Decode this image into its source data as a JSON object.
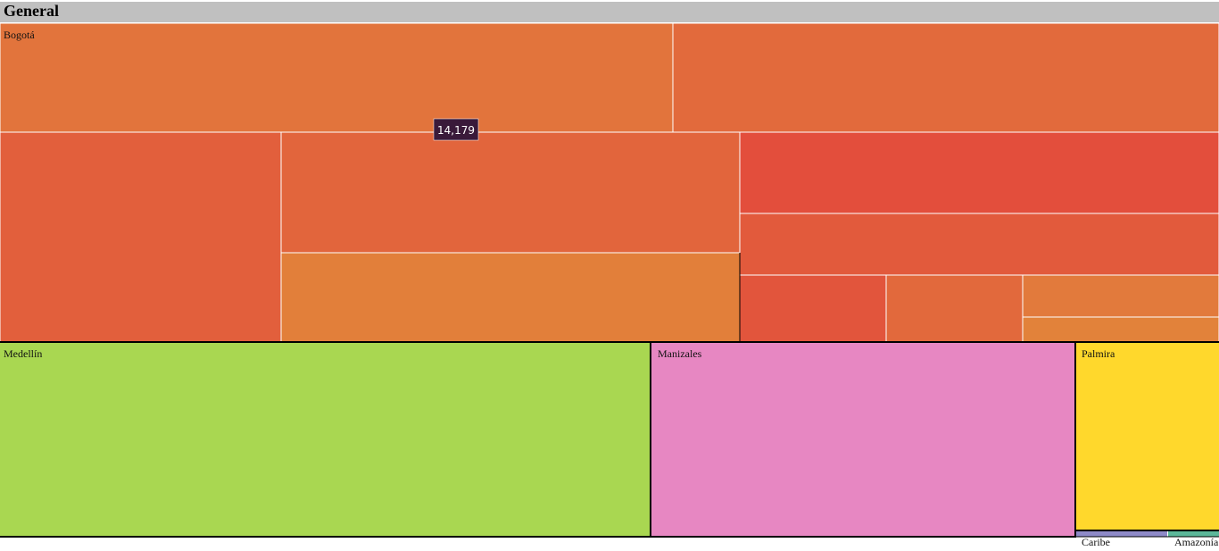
{
  "header": {
    "title": "General"
  },
  "regions": [
    {
      "label": "Bogotá"
    },
    {
      "label": "Medellín"
    },
    {
      "label": "Manizales"
    },
    {
      "label": "Palmira"
    },
    {
      "label": "Caribe"
    },
    {
      "label": "Amazonía"
    }
  ],
  "tooltip": {
    "text": "14,179"
  }
}
